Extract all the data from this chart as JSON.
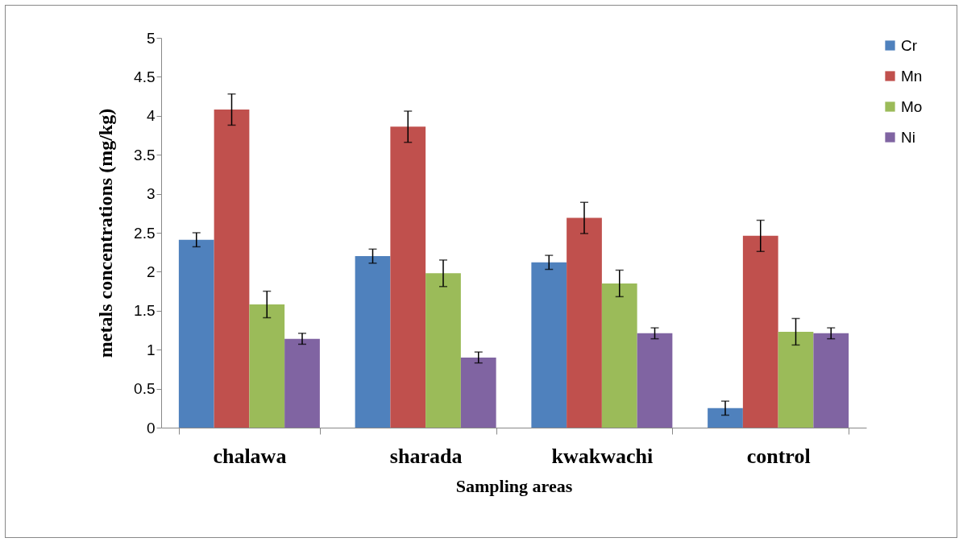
{
  "chart_data": {
    "type": "bar",
    "xlabel": "Sampling areas",
    "ylabel": "metals  concentrations (mg/kg)",
    "categories": [
      "chalawa",
      "sharada",
      "kwakwachi",
      "control"
    ],
    "series": [
      {
        "name": "Cr",
        "color": "#4f81bd",
        "values": [
          2.41,
          2.2,
          2.12,
          0.25
        ],
        "errors": [
          0.09,
          0.09,
          0.09,
          0.09
        ]
      },
      {
        "name": "Mn",
        "color": "#c0504d",
        "values": [
          4.08,
          3.86,
          2.69,
          2.46
        ],
        "errors": [
          0.2,
          0.2,
          0.2,
          0.2
        ]
      },
      {
        "name": "Mo",
        "color": "#9bbb59",
        "values": [
          1.58,
          1.98,
          1.85,
          1.23
        ],
        "errors": [
          0.17,
          0.17,
          0.17,
          0.17
        ]
      },
      {
        "name": "Ni",
        "color": "#8064a2",
        "values": [
          1.14,
          0.9,
          1.21,
          1.21
        ],
        "errors": [
          0.07,
          0.07,
          0.07,
          0.07
        ]
      }
    ],
    "ylim": [
      0,
      5
    ],
    "yticks": [
      0,
      0.5,
      1,
      1.5,
      2,
      2.5,
      3,
      3.5,
      4,
      4.5,
      5
    ],
    "grid": false,
    "legend": "right"
  }
}
